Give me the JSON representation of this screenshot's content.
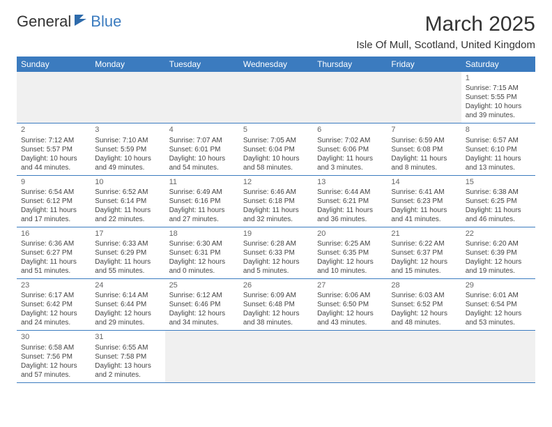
{
  "logo": {
    "part1": "General",
    "part2": "Blue"
  },
  "title": "March 2025",
  "location": "Isle Of Mull, Scotland, United Kingdom",
  "columns": [
    "Sunday",
    "Monday",
    "Tuesday",
    "Wednesday",
    "Thursday",
    "Friday",
    "Saturday"
  ],
  "colors": {
    "header_bg": "#3b7bbf",
    "header_text": "#ffffff",
    "grid_line": "#3b7bbf",
    "blank_bg": "#f0f0f0",
    "body_text": "#444444",
    "day_num": "#666666",
    "page_bg": "#ffffff"
  },
  "typography": {
    "title_fontsize": 30,
    "location_fontsize": 15,
    "header_fontsize": 12,
    "body_fontsize": 10,
    "daynum_fontsize": 11
  },
  "weeks": [
    [
      {
        "blank": true
      },
      {
        "blank": true
      },
      {
        "blank": true
      },
      {
        "blank": true
      },
      {
        "blank": true
      },
      {
        "blank": true
      },
      {
        "num": "1",
        "sunrise": "Sunrise: 7:15 AM",
        "sunset": "Sunset: 5:55 PM",
        "daylight1": "Daylight: 10 hours",
        "daylight2": "and 39 minutes."
      }
    ],
    [
      {
        "num": "2",
        "sunrise": "Sunrise: 7:12 AM",
        "sunset": "Sunset: 5:57 PM",
        "daylight1": "Daylight: 10 hours",
        "daylight2": "and 44 minutes."
      },
      {
        "num": "3",
        "sunrise": "Sunrise: 7:10 AM",
        "sunset": "Sunset: 5:59 PM",
        "daylight1": "Daylight: 10 hours",
        "daylight2": "and 49 minutes."
      },
      {
        "num": "4",
        "sunrise": "Sunrise: 7:07 AM",
        "sunset": "Sunset: 6:01 PM",
        "daylight1": "Daylight: 10 hours",
        "daylight2": "and 54 minutes."
      },
      {
        "num": "5",
        "sunrise": "Sunrise: 7:05 AM",
        "sunset": "Sunset: 6:04 PM",
        "daylight1": "Daylight: 10 hours",
        "daylight2": "and 58 minutes."
      },
      {
        "num": "6",
        "sunrise": "Sunrise: 7:02 AM",
        "sunset": "Sunset: 6:06 PM",
        "daylight1": "Daylight: 11 hours",
        "daylight2": "and 3 minutes."
      },
      {
        "num": "7",
        "sunrise": "Sunrise: 6:59 AM",
        "sunset": "Sunset: 6:08 PM",
        "daylight1": "Daylight: 11 hours",
        "daylight2": "and 8 minutes."
      },
      {
        "num": "8",
        "sunrise": "Sunrise: 6:57 AM",
        "sunset": "Sunset: 6:10 PM",
        "daylight1": "Daylight: 11 hours",
        "daylight2": "and 13 minutes."
      }
    ],
    [
      {
        "num": "9",
        "sunrise": "Sunrise: 6:54 AM",
        "sunset": "Sunset: 6:12 PM",
        "daylight1": "Daylight: 11 hours",
        "daylight2": "and 17 minutes."
      },
      {
        "num": "10",
        "sunrise": "Sunrise: 6:52 AM",
        "sunset": "Sunset: 6:14 PM",
        "daylight1": "Daylight: 11 hours",
        "daylight2": "and 22 minutes."
      },
      {
        "num": "11",
        "sunrise": "Sunrise: 6:49 AM",
        "sunset": "Sunset: 6:16 PM",
        "daylight1": "Daylight: 11 hours",
        "daylight2": "and 27 minutes."
      },
      {
        "num": "12",
        "sunrise": "Sunrise: 6:46 AM",
        "sunset": "Sunset: 6:18 PM",
        "daylight1": "Daylight: 11 hours",
        "daylight2": "and 32 minutes."
      },
      {
        "num": "13",
        "sunrise": "Sunrise: 6:44 AM",
        "sunset": "Sunset: 6:21 PM",
        "daylight1": "Daylight: 11 hours",
        "daylight2": "and 36 minutes."
      },
      {
        "num": "14",
        "sunrise": "Sunrise: 6:41 AM",
        "sunset": "Sunset: 6:23 PM",
        "daylight1": "Daylight: 11 hours",
        "daylight2": "and 41 minutes."
      },
      {
        "num": "15",
        "sunrise": "Sunrise: 6:38 AM",
        "sunset": "Sunset: 6:25 PM",
        "daylight1": "Daylight: 11 hours",
        "daylight2": "and 46 minutes."
      }
    ],
    [
      {
        "num": "16",
        "sunrise": "Sunrise: 6:36 AM",
        "sunset": "Sunset: 6:27 PM",
        "daylight1": "Daylight: 11 hours",
        "daylight2": "and 51 minutes."
      },
      {
        "num": "17",
        "sunrise": "Sunrise: 6:33 AM",
        "sunset": "Sunset: 6:29 PM",
        "daylight1": "Daylight: 11 hours",
        "daylight2": "and 55 minutes."
      },
      {
        "num": "18",
        "sunrise": "Sunrise: 6:30 AM",
        "sunset": "Sunset: 6:31 PM",
        "daylight1": "Daylight: 12 hours",
        "daylight2": "and 0 minutes."
      },
      {
        "num": "19",
        "sunrise": "Sunrise: 6:28 AM",
        "sunset": "Sunset: 6:33 PM",
        "daylight1": "Daylight: 12 hours",
        "daylight2": "and 5 minutes."
      },
      {
        "num": "20",
        "sunrise": "Sunrise: 6:25 AM",
        "sunset": "Sunset: 6:35 PM",
        "daylight1": "Daylight: 12 hours",
        "daylight2": "and 10 minutes."
      },
      {
        "num": "21",
        "sunrise": "Sunrise: 6:22 AM",
        "sunset": "Sunset: 6:37 PM",
        "daylight1": "Daylight: 12 hours",
        "daylight2": "and 15 minutes."
      },
      {
        "num": "22",
        "sunrise": "Sunrise: 6:20 AM",
        "sunset": "Sunset: 6:39 PM",
        "daylight1": "Daylight: 12 hours",
        "daylight2": "and 19 minutes."
      }
    ],
    [
      {
        "num": "23",
        "sunrise": "Sunrise: 6:17 AM",
        "sunset": "Sunset: 6:42 PM",
        "daylight1": "Daylight: 12 hours",
        "daylight2": "and 24 minutes."
      },
      {
        "num": "24",
        "sunrise": "Sunrise: 6:14 AM",
        "sunset": "Sunset: 6:44 PM",
        "daylight1": "Daylight: 12 hours",
        "daylight2": "and 29 minutes."
      },
      {
        "num": "25",
        "sunrise": "Sunrise: 6:12 AM",
        "sunset": "Sunset: 6:46 PM",
        "daylight1": "Daylight: 12 hours",
        "daylight2": "and 34 minutes."
      },
      {
        "num": "26",
        "sunrise": "Sunrise: 6:09 AM",
        "sunset": "Sunset: 6:48 PM",
        "daylight1": "Daylight: 12 hours",
        "daylight2": "and 38 minutes."
      },
      {
        "num": "27",
        "sunrise": "Sunrise: 6:06 AM",
        "sunset": "Sunset: 6:50 PM",
        "daylight1": "Daylight: 12 hours",
        "daylight2": "and 43 minutes."
      },
      {
        "num": "28",
        "sunrise": "Sunrise: 6:03 AM",
        "sunset": "Sunset: 6:52 PM",
        "daylight1": "Daylight: 12 hours",
        "daylight2": "and 48 minutes."
      },
      {
        "num": "29",
        "sunrise": "Sunrise: 6:01 AM",
        "sunset": "Sunset: 6:54 PM",
        "daylight1": "Daylight: 12 hours",
        "daylight2": "and 53 minutes."
      }
    ],
    [
      {
        "num": "30",
        "sunrise": "Sunrise: 6:58 AM",
        "sunset": "Sunset: 7:56 PM",
        "daylight1": "Daylight: 12 hours",
        "daylight2": "and 57 minutes."
      },
      {
        "num": "31",
        "sunrise": "Sunrise: 6:55 AM",
        "sunset": "Sunset: 7:58 PM",
        "daylight1": "Daylight: 13 hours",
        "daylight2": "and 2 minutes."
      },
      {
        "blank": true
      },
      {
        "blank": true
      },
      {
        "blank": true
      },
      {
        "blank": true
      },
      {
        "blank": true
      }
    ]
  ]
}
